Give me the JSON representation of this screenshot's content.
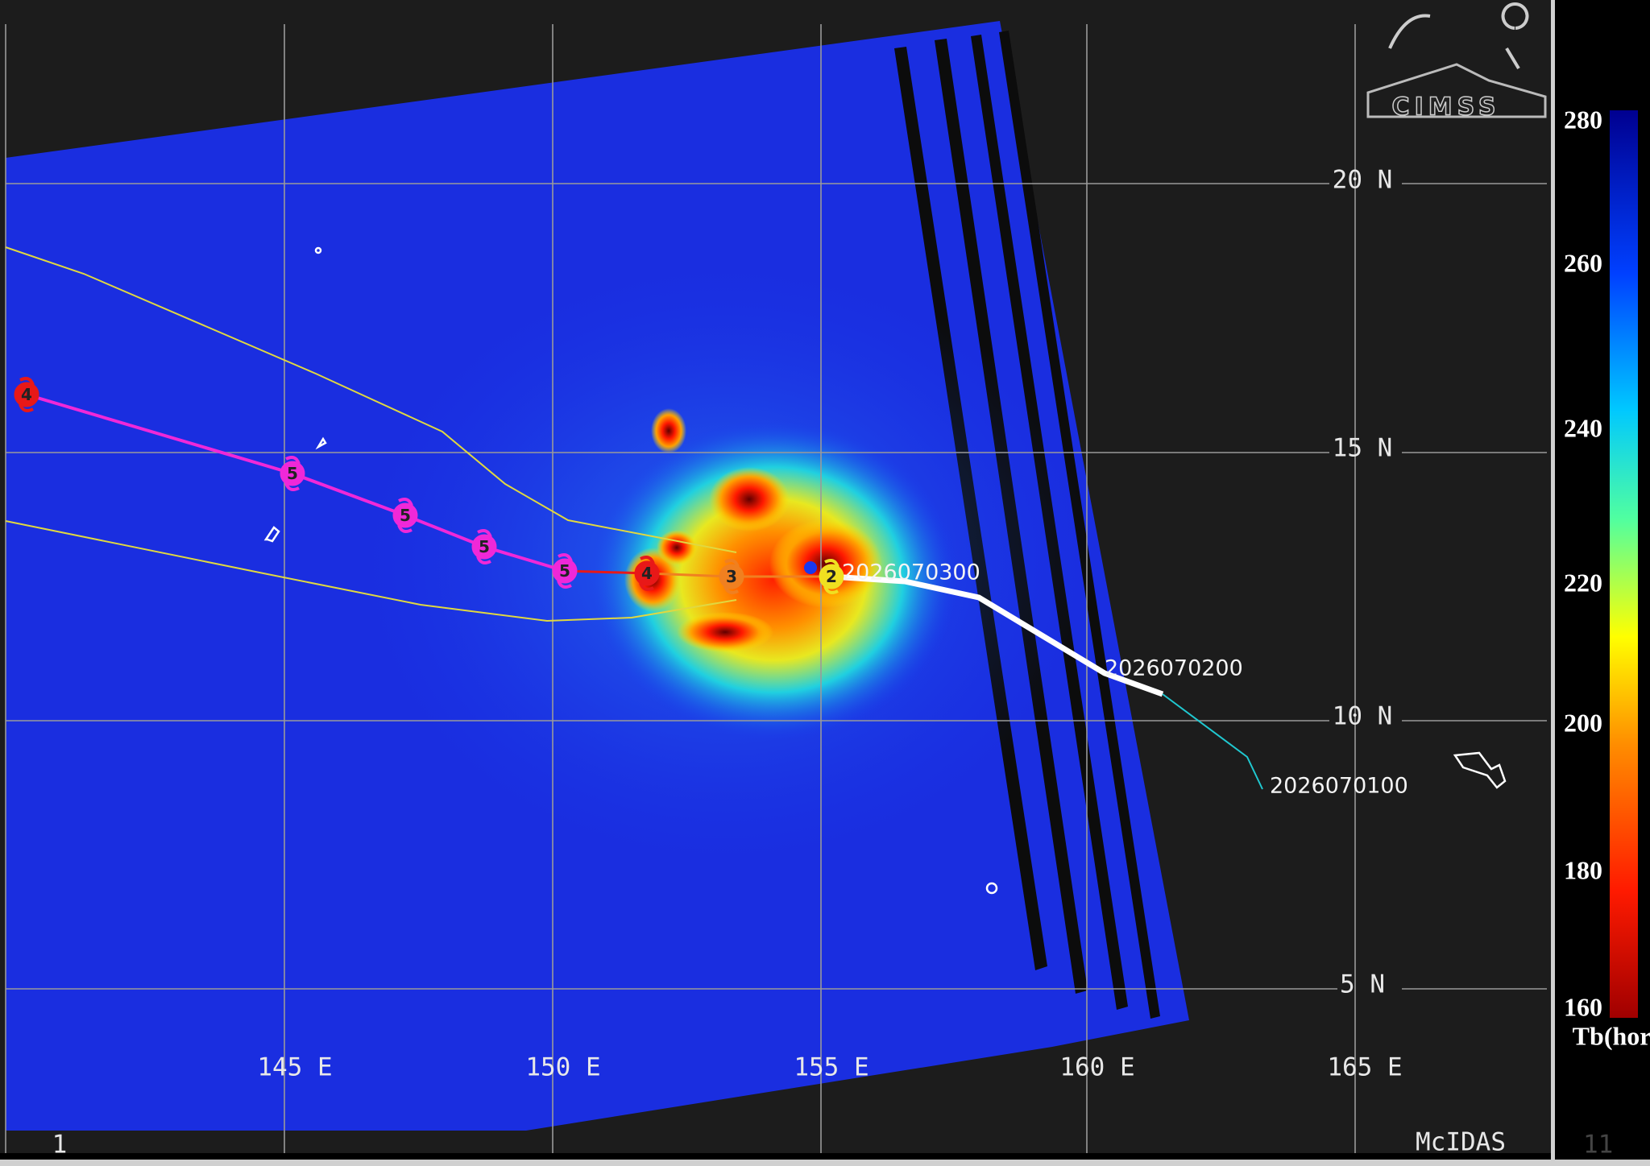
{
  "map": {
    "logo": "CIMSS",
    "lat_labels": [
      "20 N",
      "15 N",
      "10 N",
      "5 N"
    ],
    "lon_labels": [
      "145 E",
      "150 E",
      "155 E",
      "160 E",
      "165 E"
    ],
    "times": [
      "2026070300",
      "2026070200",
      "2026070100"
    ],
    "track_markers": [
      {
        "label": "4",
        "color": "#e81818"
      },
      {
        "label": "5",
        "color": "#f028d8"
      },
      {
        "label": "5",
        "color": "#f028d8"
      },
      {
        "label": "5",
        "color": "#f028d8"
      },
      {
        "label": "5",
        "color": "#f028d8"
      },
      {
        "label": "4",
        "color": "#e81818"
      },
      {
        "label": "3",
        "color": "#f08020"
      },
      {
        "label": "2",
        "color": "#f0e020"
      }
    ],
    "colorbar": {
      "ticks": [
        280,
        260,
        240,
        220,
        200,
        180,
        160
      ],
      "label": "Tb(horz)"
    },
    "footer": {
      "frame": "1",
      "software": "McIDAS",
      "number": "11"
    }
  }
}
